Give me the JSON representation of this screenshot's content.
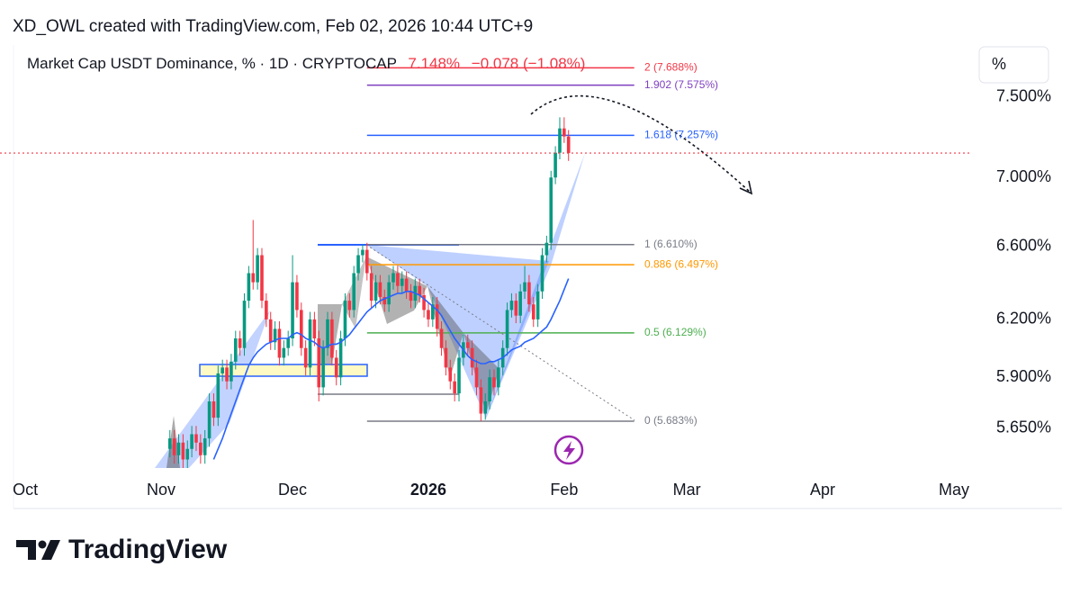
{
  "header": "XD_OWL created with TradingView.com, Feb 02, 2026 10:44 UTC+9",
  "brand": "TradingView",
  "chart_data": {
    "type": "candlestick",
    "title": "Market Cap USDT Dominance, % · 1D · CRYPTOCAP",
    "last_price": {
      "value": 7.148,
      "label": "7.148%"
    },
    "change": "−0.078 (−1.08%)",
    "scale_button": "%",
    "log": true,
    "grid": false,
    "up_color": "#089981",
    "down_color": "#f23645",
    "ylim": [
      5.46,
      7.84
    ],
    "yticks": [
      {
        "value": 7.5,
        "label": "7.500%"
      },
      {
        "value": 7.0,
        "label": "7.000%"
      },
      {
        "value": 6.6,
        "label": "6.600%"
      },
      {
        "value": 6.2,
        "label": "6.200%"
      },
      {
        "value": 5.9,
        "label": "5.900%"
      },
      {
        "value": 5.65,
        "label": "5.650%"
      }
    ],
    "xlim": [
      -35.7,
      183.1
    ],
    "xticks": [
      {
        "value": -33,
        "label": "Oct"
      },
      {
        "value": -2,
        "label": "Nov"
      },
      {
        "value": 28,
        "label": "Dec"
      },
      {
        "value": 59,
        "label": "2026"
      },
      {
        "value": 90,
        "label": "Feb"
      },
      {
        "value": 118,
        "label": "Mar"
      },
      {
        "value": 149,
        "label": "Apr"
      },
      {
        "value": 179,
        "label": "May"
      }
    ],
    "open": [
      5.55,
      5.6,
      5.52,
      5.58,
      5.5,
      5.55,
      5.62,
      5.58,
      5.52,
      5.6,
      5.78,
      5.7,
      5.92,
      5.95,
      5.88,
      5.98,
      6.1,
      6.05,
      6.3,
      6.45,
      6.4,
      6.55,
      6.3,
      6.2,
      6.08,
      6.15,
      6.0,
      6.05,
      6.1,
      6.4,
      6.25,
      6.05,
      5.95,
      6.2,
      6.1,
      5.85,
      6.05,
      6.2,
      6.0,
      5.9,
      6.1,
      6.3,
      6.25,
      6.45,
      6.55,
      6.58,
      6.45,
      6.3,
      6.4,
      6.32,
      6.28,
      6.4,
      6.45,
      6.38,
      6.42,
      6.35,
      6.3,
      6.38,
      6.33,
      6.25,
      6.2,
      6.28,
      6.15,
      6.05,
      5.95,
      5.88,
      5.82,
      6.0,
      6.08,
      6.05,
      5.95,
      5.85,
      5.72,
      5.78,
      5.9,
      5.85,
      5.95,
      6.05,
      6.25,
      6.3,
      6.22,
      6.35,
      6.4,
      6.28,
      6.2,
      6.35,
      6.55,
      6.62,
      7.0,
      7.15,
      7.3,
      7.25
    ],
    "high": [
      5.64,
      5.64,
      5.62,
      5.62,
      5.59,
      5.66,
      5.66,
      5.62,
      5.64,
      5.82,
      5.82,
      5.96,
      5.99,
      5.99,
      6.02,
      6.14,
      6.14,
      6.34,
      6.49,
      6.75,
      6.59,
      6.59,
      6.34,
      6.24,
      6.19,
      6.19,
      6.09,
      6.14,
      6.55,
      6.44,
      6.29,
      6.09,
      6.24,
      6.24,
      6.14,
      6.09,
      6.24,
      6.24,
      6.04,
      6.14,
      6.34,
      6.34,
      6.49,
      6.59,
      6.61,
      6.62,
      6.49,
      6.44,
      6.44,
      6.36,
      6.44,
      6.49,
      6.49,
      6.46,
      6.46,
      6.39,
      6.42,
      6.42,
      6.37,
      6.29,
      6.32,
      6.32,
      6.19,
      6.09,
      5.99,
      5.92,
      6.04,
      6.12,
      6.12,
      6.09,
      5.99,
      5.89,
      5.82,
      5.94,
      5.94,
      5.99,
      6.09,
      6.29,
      6.34,
      6.34,
      6.39,
      6.49,
      6.44,
      6.32,
      6.39,
      6.59,
      6.66,
      7.04,
      7.19,
      7.37,
      7.37,
      7.29
    ],
    "low": [
      5.51,
      5.48,
      5.48,
      5.46,
      5.46,
      5.51,
      5.54,
      5.48,
      5.48,
      5.56,
      5.66,
      5.66,
      5.88,
      5.84,
      5.84,
      5.94,
      6.01,
      6.01,
      6.26,
      6.36,
      6.36,
      6.26,
      6.16,
      6.04,
      6.04,
      5.96,
      5.96,
      6.01,
      6.06,
      6.21,
      6.01,
      5.91,
      5.91,
      6.06,
      5.78,
      5.81,
      6.01,
      5.96,
      5.86,
      5.86,
      6.06,
      6.21,
      6.21,
      6.41,
      6.51,
      6.41,
      6.26,
      6.26,
      6.28,
      6.24,
      6.24,
      6.36,
      6.34,
      6.34,
      6.31,
      6.26,
      6.26,
      6.29,
      6.21,
      6.16,
      6.16,
      6.11,
      6.01,
      5.91,
      5.84,
      5.78,
      5.78,
      5.96,
      6.01,
      5.91,
      5.81,
      5.683,
      5.69,
      5.74,
      5.81,
      5.81,
      5.91,
      6.01,
      6.21,
      6.18,
      6.18,
      6.31,
      6.24,
      6.16,
      6.16,
      6.31,
      6.51,
      6.58,
      6.96,
      7.11,
      7.21,
      7.1
    ],
    "close": [
      5.6,
      5.52,
      5.58,
      5.5,
      5.55,
      5.62,
      5.58,
      5.52,
      5.6,
      5.78,
      5.7,
      5.92,
      5.95,
      5.88,
      5.98,
      6.1,
      6.05,
      6.3,
      6.45,
      6.4,
      6.55,
      6.3,
      6.2,
      6.08,
      6.15,
      6.0,
      6.05,
      6.1,
      6.4,
      6.25,
      6.05,
      5.95,
      6.2,
      6.1,
      5.85,
      6.05,
      6.2,
      6.0,
      5.9,
      6.1,
      6.3,
      6.25,
      6.45,
      6.55,
      6.58,
      6.45,
      6.3,
      6.4,
      6.32,
      6.28,
      6.4,
      6.45,
      6.38,
      6.42,
      6.35,
      6.3,
      6.38,
      6.33,
      6.25,
      6.2,
      6.28,
      6.15,
      6.05,
      5.95,
      5.88,
      5.82,
      6.0,
      6.08,
      6.05,
      5.95,
      5.85,
      5.72,
      5.78,
      5.9,
      5.85,
      5.95,
      6.05,
      6.25,
      6.3,
      6.22,
      6.35,
      6.4,
      6.28,
      6.2,
      6.35,
      6.55,
      6.62,
      7.0,
      7.15,
      7.3,
      7.25,
      7.148
    ],
    "ma": {
      "color": "#2962ff",
      "values": [
        null,
        null,
        null,
        null,
        null,
        null,
        null,
        null,
        null,
        null,
        5.5,
        5.55,
        5.6,
        5.66,
        5.72,
        5.78,
        5.84,
        5.9,
        5.96,
        6.0,
        6.03,
        6.05,
        6.07,
        6.08,
        6.09,
        6.1,
        6.1,
        6.1,
        6.12,
        6.13,
        6.12,
        6.1,
        6.09,
        6.08,
        6.06,
        6.05,
        6.06,
        6.07,
        6.07,
        6.08,
        6.1,
        6.12,
        6.15,
        6.18,
        6.21,
        6.24,
        6.26,
        6.28,
        6.3,
        6.31,
        6.32,
        6.33,
        6.34,
        6.34,
        6.35,
        6.35,
        6.34,
        6.33,
        6.31,
        6.29,
        6.27,
        6.25,
        6.22,
        6.18,
        6.14,
        6.1,
        6.07,
        6.04,
        6.01,
        5.99,
        5.98,
        5.97,
        5.97,
        5.98,
        5.98,
        5.99,
        6.0,
        6.02,
        6.04,
        6.05,
        6.06,
        6.08,
        6.09,
        6.1,
        6.12,
        6.14,
        6.16,
        6.2,
        6.25,
        6.3,
        6.36,
        6.42
      ]
    },
    "fib_levels": [
      {
        "value": 7.688,
        "label": "2 (7.688%)",
        "color": "#f23645"
      },
      {
        "value": 7.575,
        "label": "1.902 (7.575%)",
        "color": "#7e3fbf"
      },
      {
        "value": 7.257,
        "label": "1.618 (7.257%)",
        "color": "#2962ff"
      },
      {
        "value": 6.61,
        "label": "1 (6.610%)",
        "color": "#787b86"
      },
      {
        "value": 6.497,
        "label": "0.886 (6.497%)",
        "color": "#ff9800"
      },
      {
        "value": 6.129,
        "label": "0.5 (6.129%)",
        "color": "#4caf50"
      },
      {
        "value": 5.683,
        "label": "0 (5.683%)",
        "color": "#787b86"
      }
    ],
    "fib_x_range": [
      45,
      106
    ]
  }
}
